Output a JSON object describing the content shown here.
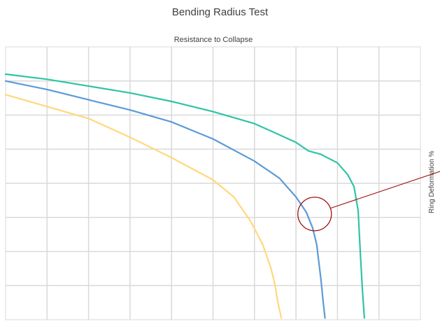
{
  "chart_data": {
    "type": "line",
    "title": "Bending Radius Test",
    "subtitle": "Resistance to Collapse",
    "ylabel": "Ring Deformation %",
    "xlabel": "",
    "grid": true,
    "xlim": [
      0,
      10
    ],
    "ylim": [
      0,
      8
    ],
    "legend": "none",
    "series": [
      {
        "color": "#2ec4a6",
        "x": [
          0,
          1,
          2,
          3,
          4,
          5,
          6,
          7,
          7.3,
          7.6,
          8,
          8.25,
          8.4,
          8.5,
          8.55,
          8.6,
          8.65
        ],
        "y": [
          7.2,
          7.05,
          6.85,
          6.65,
          6.4,
          6.1,
          5.75,
          5.2,
          4.95,
          4.85,
          4.6,
          4.25,
          3.9,
          3.2,
          2.0,
          0.9,
          0.05
        ]
      },
      {
        "color": "#5b9bd5",
        "x": [
          0,
          1,
          2,
          3,
          4,
          5,
          6,
          6.6,
          7,
          7.25,
          7.4,
          7.5,
          7.55,
          7.6,
          7.65,
          7.7
        ],
        "y": [
          7.0,
          6.75,
          6.45,
          6.15,
          5.8,
          5.3,
          4.65,
          4.15,
          3.6,
          3.15,
          2.7,
          2.2,
          1.7,
          1.2,
          0.6,
          0.05
        ]
      },
      {
        "color": "#ffd87a",
        "x": [
          0,
          1,
          2,
          3,
          4,
          5,
          5.5,
          5.9,
          6.2,
          6.4,
          6.5,
          6.55,
          6.6,
          6.65
        ],
        "y": [
          6.6,
          6.25,
          5.9,
          5.35,
          4.75,
          4.1,
          3.6,
          2.9,
          2.2,
          1.5,
          1.0,
          0.6,
          0.3,
          0.05
        ]
      }
    ]
  },
  "annotation": {
    "type": "callout-circle",
    "color": "#a01010",
    "x": 7.45,
    "y": 3.1
  }
}
